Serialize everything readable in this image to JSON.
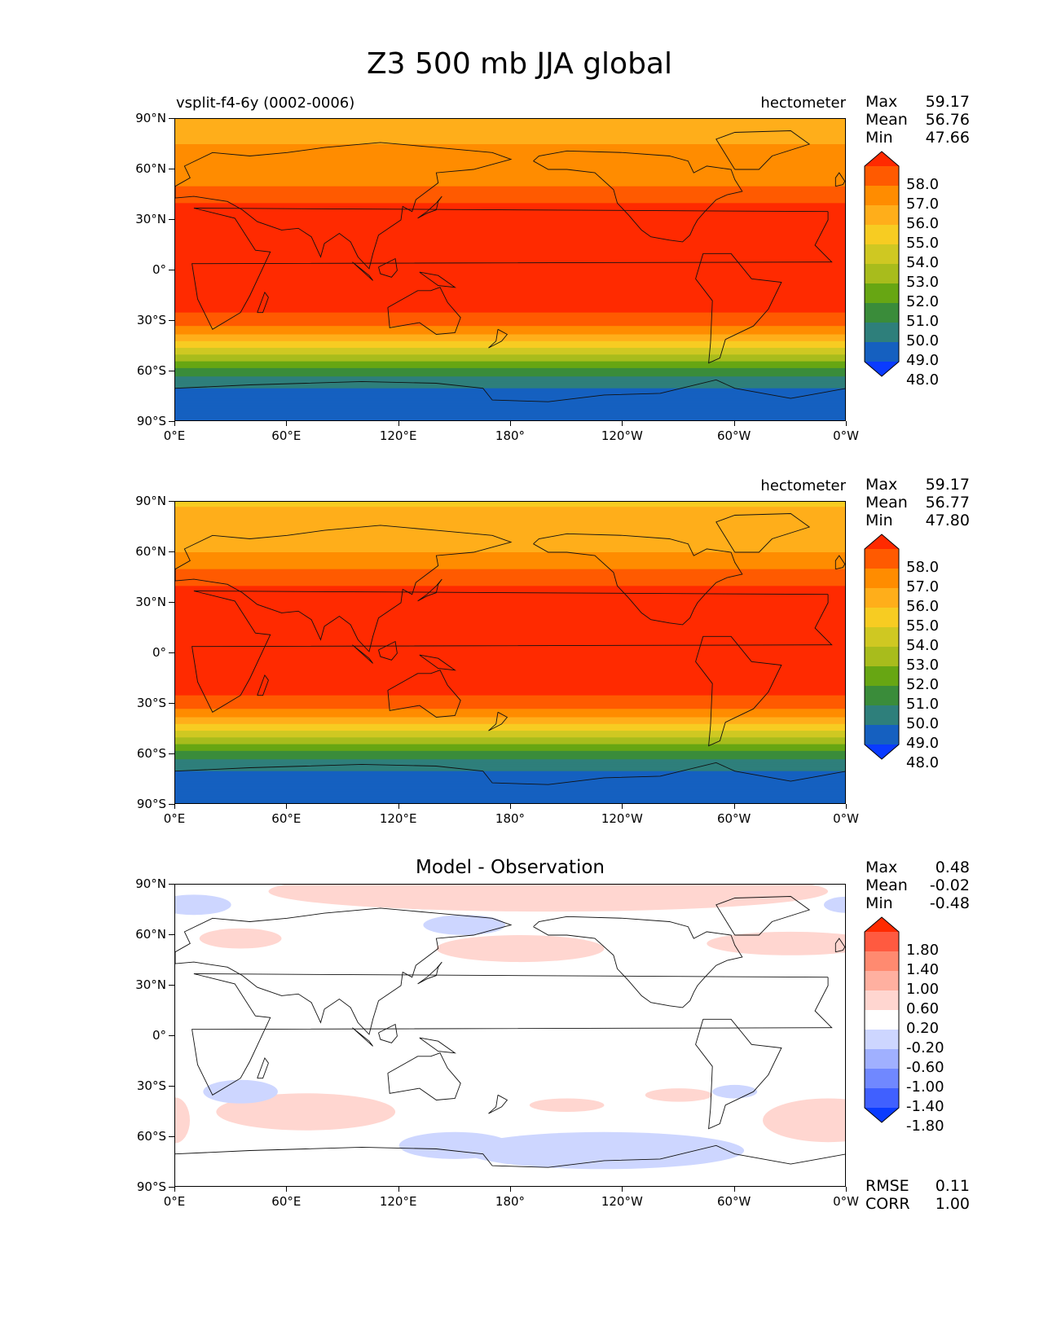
{
  "title": "Z3 500 mb JJA global",
  "x_ticks": [
    "0°E",
    "60°E",
    "120°E",
    "180°",
    "120°W",
    "60°W",
    "0°W"
  ],
  "y_ticks": [
    "90°N",
    "60°N",
    "30°N",
    "0°",
    "30°S",
    "60°S",
    "90°S"
  ],
  "panels": [
    {
      "subtitle_left": "vsplit-f4-6y (0002-0006)",
      "subtitle_right": "hectometer",
      "stats": {
        "max_label": "Max",
        "max": "59.17",
        "mean_label": "Mean",
        "mean": "56.76",
        "min_label": "Min",
        "min": "47.66"
      }
    },
    {
      "subtitle_left": "",
      "subtitle_right": "hectometer",
      "stats": {
        "max_label": "Max",
        "max": "59.17",
        "mean_label": "Mean",
        "mean": "56.77",
        "min_label": "Min",
        "min": "47.80"
      }
    },
    {
      "subtitle_center": "Model - Observation",
      "stats": {
        "max_label": "Max",
        "max": "0.48",
        "mean_label": "Mean",
        "mean": "-0.02",
        "min_label": "Min",
        "min": "-0.48"
      },
      "rmse_label": "RMSE",
      "rmse": "0.11",
      "corr_label": "CORR",
      "corr": "1.00"
    }
  ],
  "colorbar_main": {
    "labels": [
      "58.0",
      "57.0",
      "56.0",
      "55.0",
      "54.0",
      "53.0",
      "52.0",
      "51.0",
      "50.0",
      "49.0",
      "48.0"
    ],
    "colors": [
      "#ff2a00",
      "#ff5a00",
      "#ff8c00",
      "#ffae1a",
      "#f7cc22",
      "#cfc822",
      "#a8bc1c",
      "#67a613",
      "#3a8c3a",
      "#2e7f7b",
      "#1560c0",
      "#0a3bff"
    ]
  },
  "colorbar_diff": {
    "labels": [
      "1.80",
      "1.40",
      "1.00",
      "0.60",
      "0.20",
      "-0.20",
      "-0.60",
      "-1.00",
      "-1.40",
      "-1.80"
    ],
    "colors": [
      "#ff2a00",
      "#ff5a40",
      "#ff8a70",
      "#ffb0a0",
      "#ffd6d0",
      "#ffffff",
      "#cdd6ff",
      "#a0b0ff",
      "#7088ff",
      "#4060ff",
      "#0a3bff"
    ]
  },
  "chart_data": [
    {
      "type": "map",
      "title": "vsplit-f4-6y (0002-0006)",
      "units": "hectometer",
      "xlim": [
        "0°E",
        "0°W"
      ],
      "ylim": [
        "90°S",
        "90°N"
      ],
      "zonal_mean_by_lat": {
        "lat": [
          90,
          75,
          60,
          50,
          40,
          30,
          0,
          -20,
          -30,
          -40,
          -50,
          -60,
          -70,
          -80,
          -90
        ],
        "value": [
          55.0,
          56.0,
          56.0,
          57.0,
          58.0,
          58.5,
          58.7,
          58.5,
          57.5,
          55.5,
          53.0,
          50.5,
          49.0,
          48.5,
          48.0
        ]
      },
      "max": 59.17,
      "mean": 56.76,
      "min": 47.66
    },
    {
      "type": "map",
      "units": "hectometer",
      "zonal_mean_by_lat": {
        "lat": [
          90,
          75,
          60,
          50,
          40,
          30,
          0,
          -20,
          -30,
          -40,
          -50,
          -60,
          -70,
          -80,
          -90
        ],
        "value": [
          54.8,
          55.8,
          56.0,
          57.0,
          58.0,
          58.5,
          58.7,
          58.5,
          57.5,
          55.5,
          53.0,
          50.5,
          49.0,
          48.5,
          48.0
        ]
      },
      "max": 59.17,
      "mean": 56.77,
      "min": 47.8
    },
    {
      "type": "map",
      "title": "Model - Observation",
      "positive_regions": [
        {
          "lon": 200,
          "lat": 86
        },
        {
          "lon": 35,
          "lat": 58
        },
        {
          "lon": 185,
          "lat": 52
        },
        {
          "lon": 330,
          "lat": 55
        },
        {
          "lon": 70,
          "lat": -45
        },
        {
          "lon": 210,
          "lat": -41
        },
        {
          "lon": 270,
          "lat": -35
        },
        {
          "lon": 350,
          "lat": -50
        }
      ],
      "negative_regions": [
        {
          "lon": 10,
          "lat": 78
        },
        {
          "lon": 155,
          "lat": 66
        },
        {
          "lon": 35,
          "lat": -33
        },
        {
          "lon": 230,
          "lat": -68
        },
        {
          "lon": 150,
          "lat": -65
        },
        {
          "lon": 300,
          "lat": -33
        }
      ],
      "max": 0.48,
      "mean": -0.02,
      "min": -0.48,
      "rmse": 0.11,
      "corr": 1.0
    }
  ]
}
